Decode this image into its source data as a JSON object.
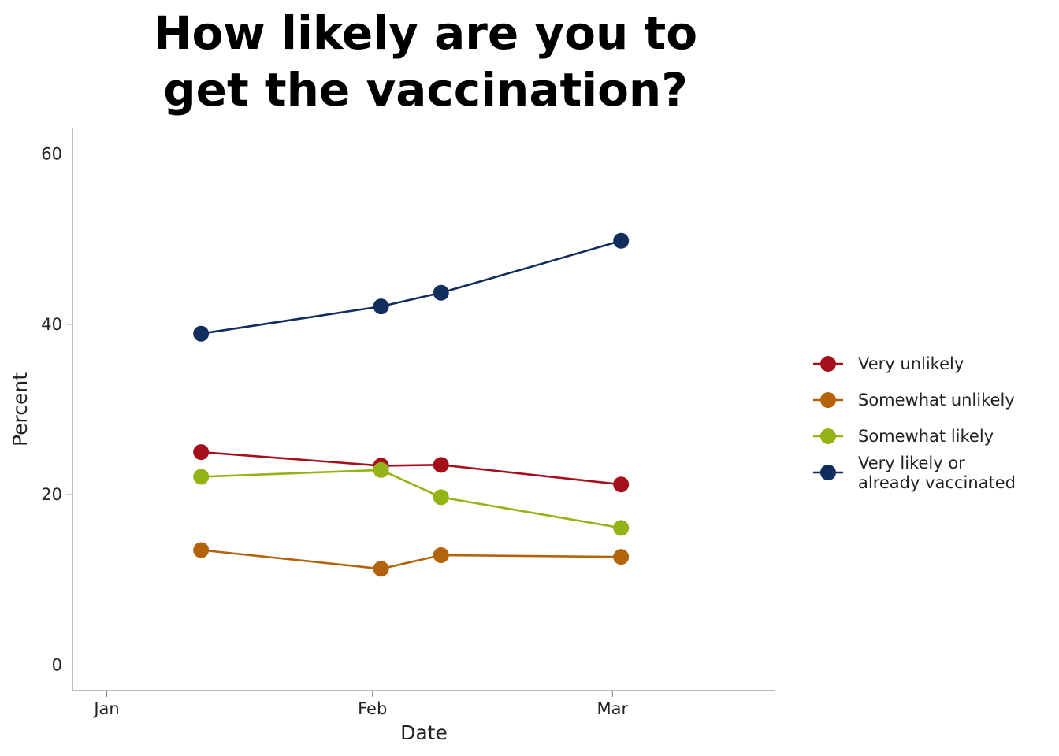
{
  "chart_data": {
    "type": "line",
    "title": "How likely are you to get the vaccination?",
    "title_lines": [
      "How likely are you to",
      "get the vaccination?"
    ],
    "xlabel": "Date",
    "ylabel": "Percent",
    "x_ticks": [
      {
        "label": "Jan",
        "date": "2021-01-01"
      },
      {
        "label": "Feb",
        "date": "2021-02-01"
      },
      {
        "label": "Mar",
        "date": "2021-03-01"
      }
    ],
    "x_range": [
      "2020-12-28",
      "2021-03-20"
    ],
    "y_ticks": [
      0,
      20,
      40,
      60
    ],
    "ylim": [
      -3,
      63
    ],
    "x": [
      "2021-01-12",
      "2021-02-02",
      "2021-02-09",
      "2021-03-02"
    ],
    "series": [
      {
        "name": "Very unlikely",
        "color": "#A50F1C",
        "values": [
          25,
          23.4,
          23.5,
          21.2
        ]
      },
      {
        "name": "Somewhat unlikely",
        "color": "#B2630B",
        "values": [
          13.5,
          11.3,
          12.9,
          12.7
        ]
      },
      {
        "name": "Somewhat likely",
        "color": "#95B314",
        "values": [
          22.1,
          22.9,
          19.7,
          16.1
        ]
      },
      {
        "name": "Very likely or already vaccinated",
        "name_lines": [
          "Very likely or",
          "already vaccinated"
        ],
        "color": "#112D5E",
        "values": [
          38.9,
          42.1,
          43.7,
          49.8
        ]
      }
    ],
    "grid": false,
    "legend_position": "right"
  }
}
